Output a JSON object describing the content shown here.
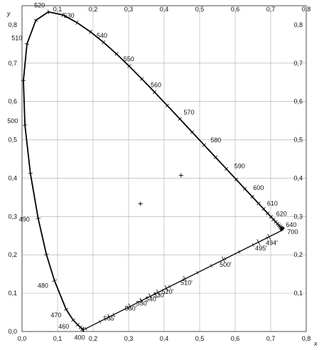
{
  "chart_data": {
    "type": "line",
    "title": "",
    "xlabel": "x",
    "ylabel": "y",
    "xlim": [
      0.0,
      0.8
    ],
    "ylim": [
      0.0,
      0.85
    ],
    "x_ticks_bottom": [
      "0,0",
      "0,1",
      "0,2",
      "0,3",
      "0,4",
      "0,5",
      "0,6",
      "0,7",
      "0,8"
    ],
    "x_ticks_top": [
      "0,1",
      "0,2",
      "0,3",
      "0,4",
      "0,5",
      "0,6",
      "0,7",
      "0,8"
    ],
    "y_ticks_left": [
      "0,0",
      "0,1",
      "0,2",
      "0,3",
      "0,4",
      "0,5",
      "0,6",
      "0,7",
      "0,8"
    ],
    "y_ticks_right": [
      "0,1",
      "0,2",
      "0,3",
      "0,4",
      "0,5",
      "0,6",
      "0,7",
      "0,8"
    ],
    "grid": true,
    "series": [
      {
        "name": "",
        "values": [
          [
            0.1741,
            0.005
          ],
          [
            0.1733,
            0.0048
          ],
          [
            0.1726,
            0.0048
          ],
          [
            0.1714,
            0.0051
          ],
          [
            0.1689,
            0.0069
          ],
          [
            0.1644,
            0.0109
          ],
          [
            0.1566,
            0.0177
          ],
          [
            0.144,
            0.0297
          ],
          [
            0.1241,
            0.0578
          ],
          [
            0.0913,
            0.1327
          ],
          [
            0.0687,
            0.2007
          ],
          [
            0.0454,
            0.295
          ],
          [
            0.0235,
            0.4127
          ],
          [
            0.0082,
            0.5384
          ],
          [
            0.0039,
            0.6548
          ],
          [
            0.0139,
            0.7502
          ],
          [
            0.0389,
            0.812
          ],
          [
            0.0743,
            0.8338
          ],
          [
            0.1142,
            0.8262
          ],
          [
            0.1547,
            0.8059
          ],
          [
            0.1929,
            0.7816
          ],
          [
            0.2296,
            0.7543
          ],
          [
            0.2658,
            0.7243
          ],
          [
            0.3016,
            0.6923
          ],
          [
            0.3373,
            0.6589
          ],
          [
            0.3731,
            0.6245
          ],
          [
            0.4087,
            0.5896
          ],
          [
            0.4441,
            0.5547
          ],
          [
            0.4788,
            0.5202
          ],
          [
            0.5125,
            0.4866
          ],
          [
            0.5448,
            0.4544
          ],
          [
            0.5752,
            0.4242
          ],
          [
            0.6029,
            0.3965
          ],
          [
            0.627,
            0.3725
          ],
          [
            0.6482,
            0.3514
          ],
          [
            0.6658,
            0.334
          ],
          [
            0.6801,
            0.3197
          ],
          [
            0.6915,
            0.3083
          ],
          [
            0.7006,
            0.2993
          ],
          [
            0.7079,
            0.292
          ],
          [
            0.714,
            0.2859
          ],
          [
            0.719,
            0.2809
          ],
          [
            0.723,
            0.277
          ],
          [
            0.726,
            0.274
          ],
          [
            0.7283,
            0.2717
          ],
          [
            0.73,
            0.27
          ],
          [
            0.7311,
            0.2689
          ],
          [
            0.732,
            0.268
          ],
          [
            0.7327,
            0.2673
          ],
          [
            0.7334,
            0.2666
          ],
          [
            0.734,
            0.266
          ],
          [
            0.7344,
            0.2656
          ],
          [
            0.7347,
            0.2653
          ]
        ]
      }
    ],
    "purple_line": [
      [
        0.7347,
        0.2653
      ],
      [
        0.1741,
        0.005
      ]
    ],
    "markers": [
      [
        0.3333,
        0.3333
      ],
      [
        0.4476,
        0.4074
      ]
    ],
    "wavelength_labels": [
      {
        "text": "400",
        "x": 0.1741,
        "y": 0.005
      },
      {
        "text": "460",
        "x": 0.144,
        "y": 0.0297
      },
      {
        "text": "470",
        "x": 0.1241,
        "y": 0.0578
      },
      {
        "text": "480",
        "x": 0.0913,
        "y": 0.1327
      },
      {
        "text": "490",
        "x": 0.0454,
        "y": 0.295
      },
      {
        "text": "500",
        "x": 0.0082,
        "y": 0.5384
      },
      {
        "text": "510",
        "x": 0.0139,
        "y": 0.7502
      },
      {
        "text": "520",
        "x": 0.0743,
        "y": 0.8338
      },
      {
        "text": "530",
        "x": 0.1547,
        "y": 0.8059
      },
      {
        "text": "540",
        "x": 0.2296,
        "y": 0.7543
      },
      {
        "text": "550",
        "x": 0.3016,
        "y": 0.6923
      },
      {
        "text": "560",
        "x": 0.3731,
        "y": 0.6245
      },
      {
        "text": "570",
        "x": 0.4441,
        "y": 0.5547
      },
      {
        "text": "580",
        "x": 0.5125,
        "y": 0.4866
      },
      {
        "text": "590",
        "x": 0.5752,
        "y": 0.4242
      },
      {
        "text": "600",
        "x": 0.627,
        "y": 0.3725
      },
      {
        "text": "610",
        "x": 0.6658,
        "y": 0.334
      },
      {
        "text": "620",
        "x": 0.6915,
        "y": 0.3083
      },
      {
        "text": "640",
        "x": 0.719,
        "y": 0.2809
      },
      {
        "text": "700",
        "x": 0.7347,
        "y": 0.2653
      }
    ],
    "complementary_labels": [
      {
        "text": "494'",
        "x": 0.695,
        "y": 0.248
      },
      {
        "text": "495'",
        "x": 0.665,
        "y": 0.234
      },
      {
        "text": "500'",
        "x": 0.565,
        "y": 0.1915
      },
      {
        "text": "510'",
        "x": 0.455,
        "y": 0.144
      },
      {
        "text": "520'",
        "x": 0.402,
        "y": 0.121
      },
      {
        "text": "530'",
        "x": 0.378,
        "y": 0.111
      },
      {
        "text": "540'",
        "x": 0.356,
        "y": 0.101
      },
      {
        "text": "550'",
        "x": 0.33,
        "y": 0.09
      },
      {
        "text": "560'",
        "x": 0.298,
        "y": 0.077
      },
      {
        "text": "565'",
        "x": 0.238,
        "y": 0.051
      }
    ]
  }
}
